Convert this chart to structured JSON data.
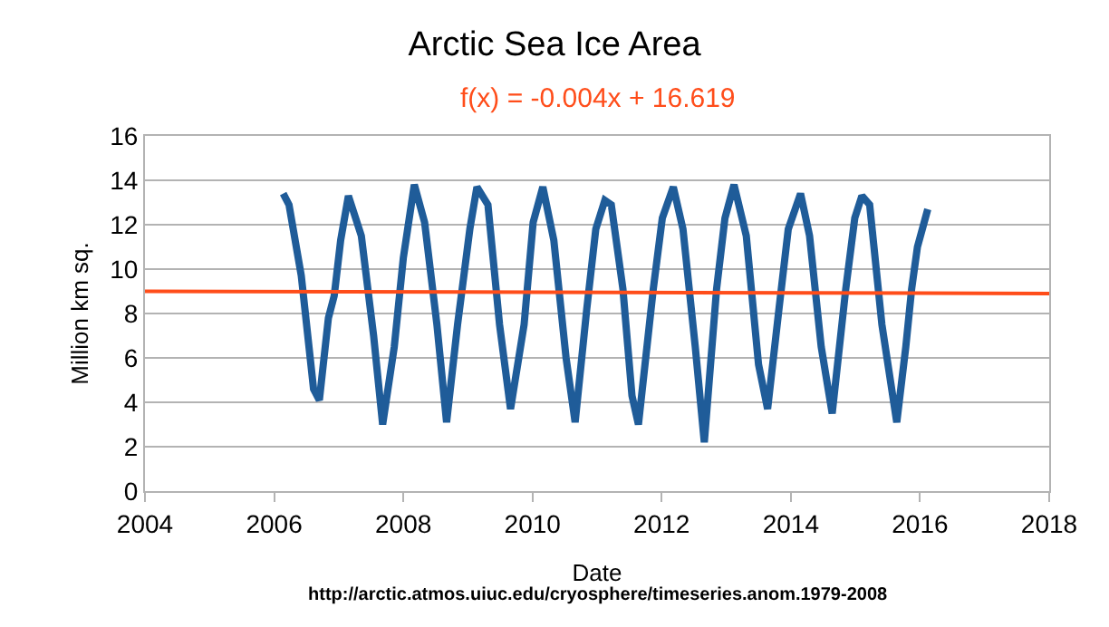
{
  "chart_data": {
    "type": "line",
    "title": "Arctic Sea Ice Area",
    "subtitle": "f(x) = -0.004x + 16.619",
    "xlabel": "Date",
    "ylabel": "Million km sq.",
    "annotations": [
      "http://arctic.atmos.uiuc.edu/cryosphere/timeseries.anom.1979-2008"
    ],
    "xlim": [
      2004,
      2018
    ],
    "xticks": [
      2004,
      2006,
      2008,
      2010,
      2012,
      2014,
      2016,
      2018
    ],
    "ylim": [
      0,
      16
    ],
    "yticks": [
      0,
      2,
      4,
      6,
      8,
      10,
      12,
      14,
      16
    ],
    "grid": "y",
    "marker": "none",
    "line_style": "solid",
    "series": [
      {
        "color": "#1f5c99",
        "x": [
          2006.14,
          2006.23,
          2006.42,
          2006.61,
          2006.7,
          2006.84,
          2006.93,
          2007.03,
          2007.15,
          2007.35,
          2007.54,
          2007.68,
          2007.86,
          2008.0,
          2008.17,
          2008.33,
          2008.52,
          2008.67,
          2008.84,
          2009.03,
          2009.14,
          2009.31,
          2009.49,
          2009.66,
          2009.87,
          2010.01,
          2010.16,
          2010.33,
          2010.52,
          2010.66,
          2010.84,
          2010.98,
          2011.12,
          2011.22,
          2011.4,
          2011.54,
          2011.64,
          2011.87,
          2012.01,
          2012.18,
          2012.33,
          2012.52,
          2012.66,
          2012.85,
          2012.98,
          2013.12,
          2013.31,
          2013.5,
          2013.64,
          2013.82,
          2013.96,
          2014.15,
          2014.29,
          2014.47,
          2014.64,
          2014.85,
          2014.99,
          2015.1,
          2015.22,
          2015.41,
          2015.64,
          2015.78,
          2015.87,
          2015.96,
          2016.12
        ],
        "values": [
          13.4,
          12.9,
          9.7,
          4.6,
          4.1,
          7.8,
          8.8,
          11.3,
          13.3,
          11.5,
          7.0,
          3.0,
          6.5,
          10.5,
          13.8,
          12.1,
          7.5,
          3.1,
          7.5,
          11.8,
          13.7,
          12.9,
          7.5,
          3.7,
          7.5,
          12.1,
          13.7,
          11.3,
          6.0,
          3.1,
          8.2,
          11.8,
          13.1,
          12.9,
          9.1,
          4.3,
          3.0,
          9.1,
          12.3,
          13.7,
          11.8,
          6.5,
          2.2,
          9.1,
          12.3,
          13.8,
          11.5,
          5.7,
          3.7,
          8.3,
          11.8,
          13.4,
          11.5,
          6.5,
          3.5,
          9.1,
          12.3,
          13.3,
          12.9,
          7.5,
          3.1,
          6.5,
          9.1,
          11.0,
          12.7
        ]
      },
      {
        "color": "#ff4d1a",
        "x": [
          2004,
          2018
        ],
        "values": [
          9.0,
          8.9
        ]
      }
    ]
  }
}
